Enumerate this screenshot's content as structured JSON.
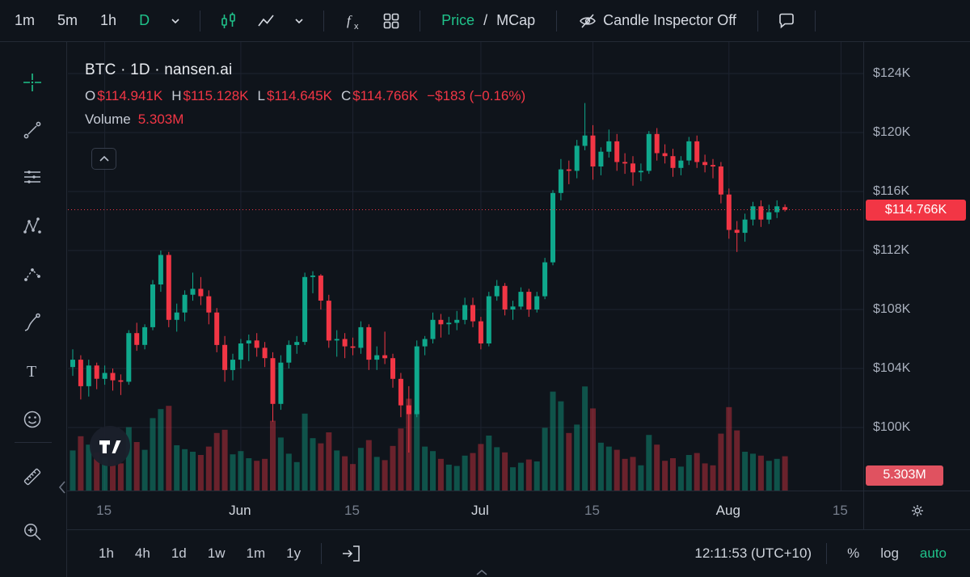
{
  "colors": {
    "up": "#0fa88c",
    "down": "#f23645",
    "accent": "#1fc28a",
    "volume_up": "rgba(16,160,133,0.45)",
    "volume_down": "rgba(242,54,69,0.40)",
    "grid": "#1d2330",
    "price_tag_bg": "#f23645",
    "volume_tag_bg": "#e05260"
  },
  "top_toolbar": {
    "interval_1m": "1m",
    "interval_5m": "5m",
    "interval_1h": "1h",
    "interval_d": "D",
    "price_label": "Price",
    "separator": "/",
    "mcap_label": "MCap",
    "candle_inspector_label": "Candle Inspector Off"
  },
  "left_toolbar": {
    "tools": [
      "crosshair",
      "trend-line",
      "horizontal-lines",
      "xabcd-pattern",
      "forecast",
      "brush",
      "text",
      "emoji",
      "ruler",
      "zoom-in"
    ]
  },
  "symbol_header": {
    "title": "BTC · 1D · nansen.ai",
    "open_label": "O",
    "open": "$114.941K",
    "high_label": "H",
    "high": "$115.128K",
    "low_label": "L",
    "low": "$114.645K",
    "close_label": "C",
    "close": "$114.766K",
    "change": "−$183 (−0.16%)",
    "volume_label": "Volume",
    "volume_value": "5.303M"
  },
  "price_scale": {
    "ticks": [
      "$124K",
      "$120K",
      "$116K",
      "$112K",
      "$108K",
      "$104K",
      "$100K"
    ],
    "current_price_tag": "$114.766K",
    "current_volume_tag": "5.303M"
  },
  "bottom_toolbar": {
    "range_1h": "1h",
    "range_4h": "4h",
    "range_1d": "1d",
    "range_1w": "1w",
    "range_1m": "1m",
    "range_1y": "1y",
    "clock": "12:11:53 (UTC+10)",
    "percent_label": "%",
    "log_label": "log",
    "auto_label": "auto"
  },
  "chart_data": {
    "type": "candlestick",
    "symbol": "BTC",
    "interval": "1D",
    "source": "nansen.ai",
    "series_unit": "USD thousands (K)",
    "last": {
      "open": 114.941,
      "high": 115.128,
      "low": 114.645,
      "close": 114.766,
      "change_usd": -183,
      "change_pct": -0.16,
      "volume_m": 5.303
    },
    "current_price": 114.766,
    "y_axis": {
      "ticks": [
        124,
        120,
        116,
        112,
        108,
        104,
        100
      ],
      "min": 96,
      "max": 126
    },
    "x_axis": {
      "labels": [
        "15",
        "Jun",
        "15",
        "Jul",
        "15",
        "Aug",
        "15"
      ],
      "label_indices": [
        4,
        21,
        35,
        51,
        65,
        82,
        96
      ],
      "start_date": "May 11",
      "end_date": "Aug 8"
    },
    "candles": [
      [
        104.1,
        105.3,
        103.5,
        104.6,
        6.2
      ],
      [
        104.6,
        104.9,
        101.9,
        102.8,
        8.4
      ],
      [
        102.8,
        104.6,
        102.1,
        104.2,
        7.1
      ],
      [
        104.2,
        104.4,
        102.6,
        103.3,
        5.9
      ],
      [
        103.3,
        104.2,
        102.9,
        103.7,
        5.1
      ],
      [
        103.7,
        104.0,
        102.5,
        103.2,
        4.8
      ],
      [
        103.2,
        103.6,
        102.2,
        103.1,
        4.2
      ],
      [
        103.1,
        106.6,
        102.9,
        106.4,
        9.8
      ],
      [
        106.4,
        107.1,
        105.2,
        105.6,
        7.5
      ],
      [
        105.6,
        107.0,
        105.3,
        106.8,
        6.3
      ],
      [
        106.8,
        110.0,
        106.6,
        109.7,
        11.2
      ],
      [
        109.7,
        112.0,
        109.2,
        111.7,
        12.6
      ],
      [
        111.7,
        111.9,
        106.8,
        107.3,
        13.1
      ],
      [
        107.3,
        108.4,
        106.5,
        107.8,
        7.0
      ],
      [
        107.8,
        109.3,
        107.2,
        109.0,
        6.4
      ],
      [
        109.0,
        110.5,
        108.6,
        109.4,
        6.0
      ],
      [
        109.4,
        110.2,
        108.3,
        108.9,
        5.5
      ],
      [
        108.9,
        109.3,
        107.0,
        107.8,
        6.8
      ],
      [
        107.8,
        108.1,
        105.1,
        105.6,
        8.9
      ],
      [
        105.6,
        106.2,
        103.1,
        103.9,
        9.4
      ],
      [
        103.9,
        105.0,
        103.2,
        104.6,
        5.6
      ],
      [
        104.6,
        106.0,
        104.0,
        105.7,
        6.1
      ],
      [
        105.7,
        106.3,
        104.5,
        105.9,
        5.0
      ],
      [
        105.9,
        106.4,
        104.8,
        105.4,
        4.6
      ],
      [
        105.4,
        105.8,
        104.1,
        104.7,
        4.9
      ],
      [
        104.7,
        105.1,
        100.4,
        101.6,
        10.8
      ],
      [
        101.6,
        104.9,
        101.2,
        104.4,
        8.2
      ],
      [
        104.4,
        105.9,
        104.0,
        105.6,
        5.7
      ],
      [
        105.6,
        106.2,
        105.0,
        105.8,
        4.4
      ],
      [
        105.8,
        110.5,
        105.6,
        110.2,
        11.9
      ],
      [
        110.2,
        110.6,
        109.1,
        110.3,
        8.1
      ],
      [
        110.3,
        110.4,
        108.0,
        108.6,
        7.3
      ],
      [
        108.6,
        109.0,
        105.4,
        105.9,
        9.0
      ],
      [
        105.9,
        106.6,
        104.8,
        106.0,
        6.2
      ],
      [
        106.0,
        106.4,
        104.7,
        105.5,
        5.3
      ],
      [
        105.5,
        106.1,
        104.9,
        105.4,
        4.1
      ],
      [
        105.4,
        107.2,
        105.0,
        106.8,
        6.6
      ],
      [
        106.8,
        107.0,
        103.9,
        104.6,
        7.8
      ],
      [
        104.6,
        105.5,
        103.9,
        104.9,
        5.2
      ],
      [
        104.9,
        106.5,
        104.3,
        104.7,
        4.7
      ],
      [
        104.7,
        105.0,
        102.7,
        103.3,
        6.9
      ],
      [
        103.3,
        103.7,
        100.7,
        101.5,
        9.6
      ],
      [
        101.5,
        102.8,
        98.3,
        100.9,
        14.2
      ],
      [
        100.9,
        105.9,
        100.7,
        105.5,
        12.4
      ],
      [
        105.5,
        106.2,
        104.9,
        106.0,
        6.8
      ],
      [
        106.0,
        107.8,
        105.7,
        107.3,
        6.1
      ],
      [
        107.3,
        107.7,
        106.1,
        107.0,
        4.9
      ],
      [
        107.0,
        107.5,
        106.3,
        107.1,
        4.0
      ],
      [
        107.1,
        107.9,
        106.6,
        107.3,
        3.8
      ],
      [
        107.3,
        108.8,
        107.0,
        108.3,
        5.4
      ],
      [
        108.3,
        108.8,
        106.8,
        107.2,
        5.8
      ],
      [
        107.2,
        107.5,
        105.3,
        105.7,
        7.2
      ],
      [
        105.7,
        109.2,
        105.5,
        108.9,
        8.5
      ],
      [
        108.9,
        110.0,
        108.6,
        109.6,
        6.7
      ],
      [
        109.6,
        109.8,
        107.6,
        108.0,
        5.9
      ],
      [
        108.0,
        108.6,
        107.3,
        108.2,
        3.6
      ],
      [
        108.2,
        109.5,
        108.0,
        109.2,
        4.3
      ],
      [
        109.2,
        109.4,
        107.5,
        108.0,
        4.8
      ],
      [
        108.0,
        109.2,
        107.8,
        108.9,
        4.5
      ],
      [
        108.9,
        111.5,
        108.7,
        111.2,
        9.7
      ],
      [
        111.2,
        116.1,
        111.0,
        115.9,
        15.3
      ],
      [
        115.9,
        118.2,
        115.4,
        117.5,
        13.8
      ],
      [
        117.5,
        118.1,
        116.5,
        117.4,
        8.9
      ],
      [
        117.4,
        119.5,
        116.9,
        119.1,
        10.2
      ],
      [
        119.1,
        122.0,
        118.8,
        119.8,
        16.1
      ],
      [
        119.8,
        120.5,
        116.8,
        117.7,
        12.7
      ],
      [
        117.7,
        119.0,
        117.1,
        118.7,
        7.4
      ],
      [
        118.7,
        120.2,
        118.3,
        119.4,
        6.8
      ],
      [
        119.4,
        119.9,
        117.4,
        118.0,
        6.3
      ],
      [
        118.0,
        118.6,
        117.2,
        117.9,
        4.9
      ],
      [
        117.9,
        118.4,
        116.4,
        117.3,
        5.2
      ],
      [
        117.3,
        117.9,
        116.7,
        117.4,
        3.9
      ],
      [
        117.4,
        120.1,
        117.2,
        119.9,
        8.6
      ],
      [
        119.9,
        120.3,
        118.1,
        118.6,
        7.1
      ],
      [
        118.6,
        119.2,
        117.9,
        118.4,
        4.6
      ],
      [
        118.4,
        118.9,
        117.0,
        117.6,
        5.0
      ],
      [
        117.6,
        118.4,
        117.1,
        118.1,
        3.7
      ],
      [
        118.1,
        119.7,
        117.8,
        119.4,
        5.5
      ],
      [
        119.4,
        119.8,
        117.6,
        118.0,
        5.8
      ],
      [
        118.0,
        118.5,
        117.3,
        117.8,
        4.2
      ],
      [
        117.8,
        118.2,
        116.9,
        117.7,
        3.9
      ],
      [
        117.7,
        118.0,
        115.2,
        115.8,
        8.8
      ],
      [
        115.8,
        116.2,
        112.8,
        113.4,
        12.9
      ],
      [
        113.4,
        114.0,
        111.9,
        113.2,
        9.3
      ],
      [
        113.2,
        114.5,
        112.6,
        114.1,
        6.0
      ],
      [
        114.1,
        115.3,
        113.7,
        115.0,
        5.7
      ],
      [
        115.0,
        115.4,
        113.6,
        114.1,
        5.4
      ],
      [
        114.1,
        115.1,
        113.8,
        114.6,
        4.6
      ],
      [
        114.6,
        115.4,
        114.2,
        115.0,
        4.9
      ],
      [
        114.941,
        115.128,
        114.645,
        114.766,
        5.303
      ]
    ]
  }
}
